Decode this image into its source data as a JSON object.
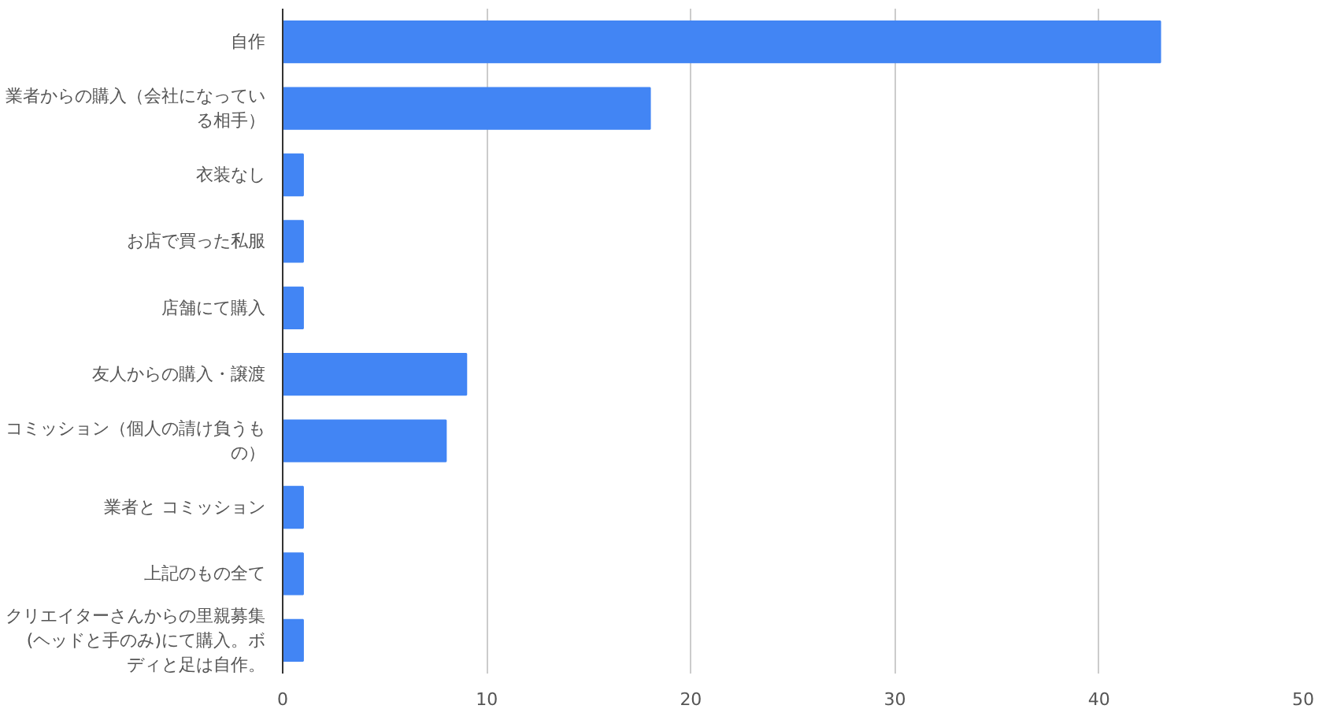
{
  "chart_data": {
    "type": "bar",
    "orientation": "horizontal",
    "categories": [
      "自作",
      "業者からの購入（会社になっている相手）",
      "衣装なし",
      "お店で買った私服",
      "店舗にて購入",
      "友人からの購入・譲渡",
      "コミッション（個人の請け負うもの）",
      "業者と コミッション",
      "上記のもの全て",
      "クリエイターさんからの里親募集(ヘッドと手のみ)にて購入。ボディと足は自作。"
    ],
    "values": [
      43,
      18,
      1,
      1,
      1,
      9,
      8,
      1,
      1,
      1
    ],
    "color": "#4285f4",
    "xlim": [
      0,
      50
    ],
    "xticks": [
      0,
      10,
      20,
      30,
      40,
      50
    ],
    "grid": "x"
  }
}
